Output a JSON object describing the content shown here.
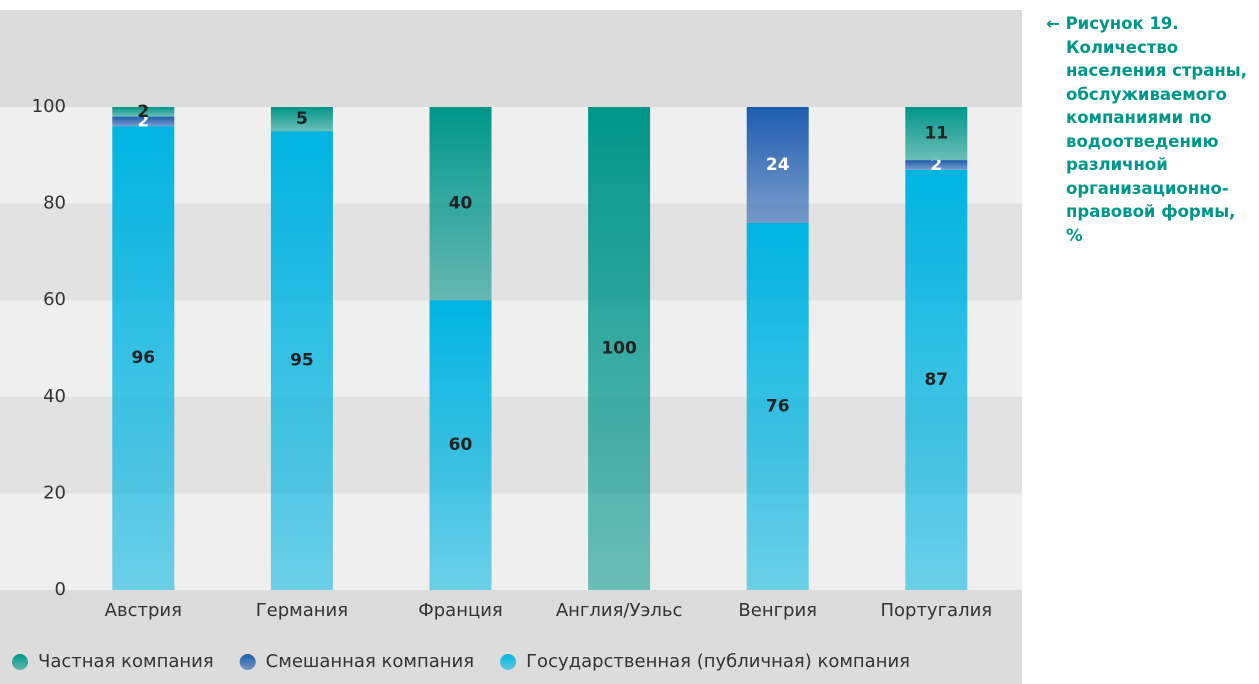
{
  "chart_data": {
    "type": "stacked_bar",
    "title": "← Рисунок 19. Количество населения страны, обслуживаемого компаниями по водоотведению различной организационно-правовой формы, %",
    "categories": [
      "Австрия",
      "Германия",
      "Франция",
      "Англия/Уэльс",
      "Венгрия",
      "Португалия"
    ],
    "series": [
      {
        "name": "Частная компания",
        "color": "#00968a",
        "values": [
          2,
          5,
          40,
          100,
          0,
          11
        ]
      },
      {
        "name": "Смешанная компания",
        "color": "#1d5cae",
        "values": [
          2,
          0,
          0,
          0,
          24,
          2
        ]
      },
      {
        "name": "Государственная (публичная) компания",
        "color": "#00b4e1",
        "values": [
          96,
          95,
          60,
          0,
          76,
          87
        ]
      }
    ],
    "ylim": [
      0,
      100
    ],
    "yticks": [
      0,
      20,
      40,
      60,
      80,
      100
    ],
    "grid": true,
    "legend": "bottom"
  }
}
